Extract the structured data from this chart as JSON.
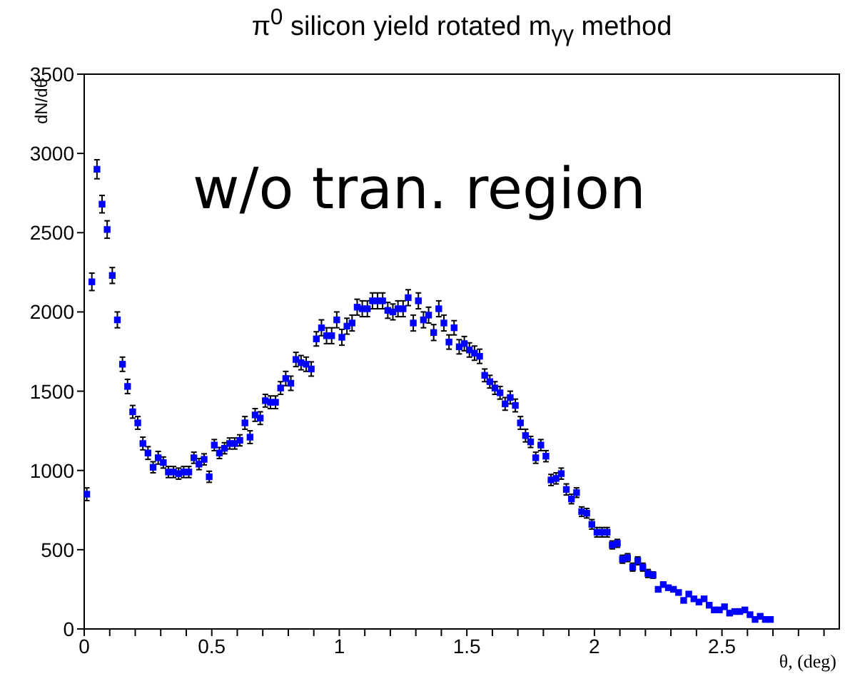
{
  "chart_data": {
    "type": "scatter",
    "title": "π$^{0}$ silicon yield rotated m$_{γγ}$ method",
    "xlabel": "θ, (deg)",
    "ylabel": "dN/dθ",
    "annotations": [
      "w/o tran. region"
    ],
    "marker": "square",
    "xlim": [
      0,
      2.96
    ],
    "ylim": [
      0,
      3500
    ],
    "xticks": [
      0,
      {
        "value": 0.1,
        "label": null
      },
      {
        "value": 0.2,
        "label": null
      },
      {
        "value": 0.3,
        "label": null
      },
      {
        "value": 0.4,
        "label": null
      },
      0.5,
      {
        "value": 0.6,
        "label": null
      },
      {
        "value": 0.7,
        "label": null
      },
      {
        "value": 0.8,
        "label": null
      },
      {
        "value": 0.9,
        "label": null
      },
      1,
      {
        "value": 1.1,
        "label": null
      },
      {
        "value": 1.2,
        "label": null
      },
      {
        "value": 1.3,
        "label": null
      },
      {
        "value": 1.4,
        "label": null
      },
      1.5,
      {
        "value": 1.6,
        "label": null
      },
      {
        "value": 1.7,
        "label": null
      },
      {
        "value": 1.8,
        "label": null
      },
      {
        "value": 1.9,
        "label": null
      },
      2,
      {
        "value": 2.1,
        "label": null
      },
      {
        "value": 2.2,
        "label": null
      },
      {
        "value": 2.3,
        "label": null
      },
      {
        "value": 2.4,
        "label": null
      },
      2.5,
      {
        "value": 2.6,
        "label": null
      },
      {
        "value": 2.7,
        "label": null
      },
      {
        "value": 2.8,
        "label": null
      },
      {
        "value": 2.9,
        "label": null
      }
    ],
    "yticks": [
      0,
      500,
      1000,
      1500,
      2000,
      2500,
      3000,
      3500
    ],
    "series": [
      {
        "color": "#0000ff",
        "x": [
          0.01,
          0.03,
          0.05,
          0.07,
          0.09,
          0.11,
          0.13,
          0.15,
          0.17,
          0.19,
          0.21,
          0.23,
          0.25,
          0.27,
          0.29,
          0.31,
          0.33,
          0.35,
          0.37,
          0.39,
          0.41,
          0.43,
          0.45,
          0.47,
          0.49,
          0.51,
          0.53,
          0.55,
          0.57,
          0.59,
          0.61,
          0.63,
          0.65,
          0.67,
          0.69,
          0.71,
          0.73,
          0.75,
          0.77,
          0.79,
          0.81,
          0.83,
          0.85,
          0.87,
          0.89,
          0.91,
          0.93,
          0.95,
          0.97,
          0.99,
          1.01,
          1.03,
          1.05,
          1.07,
          1.09,
          1.11,
          1.13,
          1.15,
          1.17,
          1.19,
          1.21,
          1.23,
          1.25,
          1.27,
          1.29,
          1.31,
          1.33,
          1.35,
          1.37,
          1.39,
          1.41,
          1.43,
          1.45,
          1.47,
          1.49,
          1.51,
          1.53,
          1.55,
          1.57,
          1.59,
          1.61,
          1.63,
          1.65,
          1.67,
          1.69,
          1.71,
          1.73,
          1.75,
          1.77,
          1.79,
          1.81,
          1.83,
          1.85,
          1.87,
          1.89,
          1.91,
          1.93,
          1.95,
          1.97,
          1.99,
          2.01,
          2.03,
          2.05,
          2.07,
          2.09,
          2.11,
          2.13,
          2.15,
          2.17,
          2.19,
          2.21,
          2.23,
          2.25,
          2.27,
          2.29,
          2.31,
          2.33,
          2.35,
          2.37,
          2.39,
          2.41,
          2.43,
          2.45,
          2.47,
          2.49,
          2.51,
          2.53,
          2.55,
          2.57,
          2.59,
          2.61,
          2.63,
          2.65,
          2.67,
          2.69
        ],
        "values": [
          850,
          2190,
          2900,
          2680,
          2520,
          2230,
          1950,
          1670,
          1530,
          1370,
          1300,
          1170,
          1110,
          1020,
          1080,
          1050,
          990,
          990,
          980,
          990,
          990,
          1080,
          1040,
          1070,
          960,
          1160,
          1110,
          1140,
          1170,
          1170,
          1190,
          1300,
          1210,
          1350,
          1330,
          1440,
          1430,
          1430,
          1520,
          1580,
          1550,
          1700,
          1680,
          1670,
          1640,
          1830,
          1900,
          1850,
          1850,
          1950,
          1840,
          1910,
          1930,
          2030,
          2020,
          2020,
          2070,
          2070,
          2070,
          2010,
          2000,
          2020,
          2020,
          2090,
          1930,
          2070,
          1950,
          1980,
          1870,
          2020,
          1930,
          1810,
          1900,
          1780,
          1800,
          1760,
          1740,
          1720,
          1600,
          1560,
          1520,
          1490,
          1420,
          1460,
          1410,
          1300,
          1220,
          1180,
          1080,
          1160,
          1090,
          940,
          950,
          980,
          880,
          820,
          860,
          740,
          730,
          660,
          610,
          610,
          610,
          530,
          540,
          440,
          450,
          390,
          430,
          390,
          350,
          340,
          250,
          280,
          260,
          250,
          230,
          180,
          220,
          190,
          170,
          190,
          150,
          120,
          120,
          140,
          100,
          110,
          110,
          120,
          90,
          60,
          80,
          60,
          60
        ],
        "errors": [
          40,
          55,
          60,
          55,
          55,
          50,
          50,
          45,
          45,
          40,
          40,
          40,
          40,
          35,
          40,
          35,
          35,
          35,
          35,
          35,
          35,
          35,
          35,
          35,
          35,
          35,
          35,
          35,
          35,
          35,
          35,
          40,
          40,
          40,
          40,
          40,
          40,
          40,
          40,
          45,
          45,
          45,
          45,
          45,
          45,
          45,
          50,
          50,
          50,
          50,
          50,
          50,
          50,
          50,
          50,
          50,
          50,
          50,
          50,
          50,
          50,
          50,
          50,
          50,
          50,
          50,
          50,
          50,
          50,
          50,
          50,
          45,
          45,
          45,
          45,
          45,
          45,
          45,
          40,
          40,
          40,
          40,
          40,
          40,
          40,
          40,
          40,
          35,
          35,
          35,
          35,
          35,
          35,
          35,
          35,
          30,
          30,
          30,
          30,
          30,
          30,
          30,
          30,
          25,
          25,
          25,
          25,
          25,
          25,
          25,
          25,
          20,
          null,
          null,
          null,
          null,
          null,
          null,
          null,
          null,
          null,
          null,
          null,
          null,
          null,
          null,
          null,
          null,
          null,
          null,
          null,
          null,
          null,
          null,
          null
        ]
      }
    ]
  }
}
